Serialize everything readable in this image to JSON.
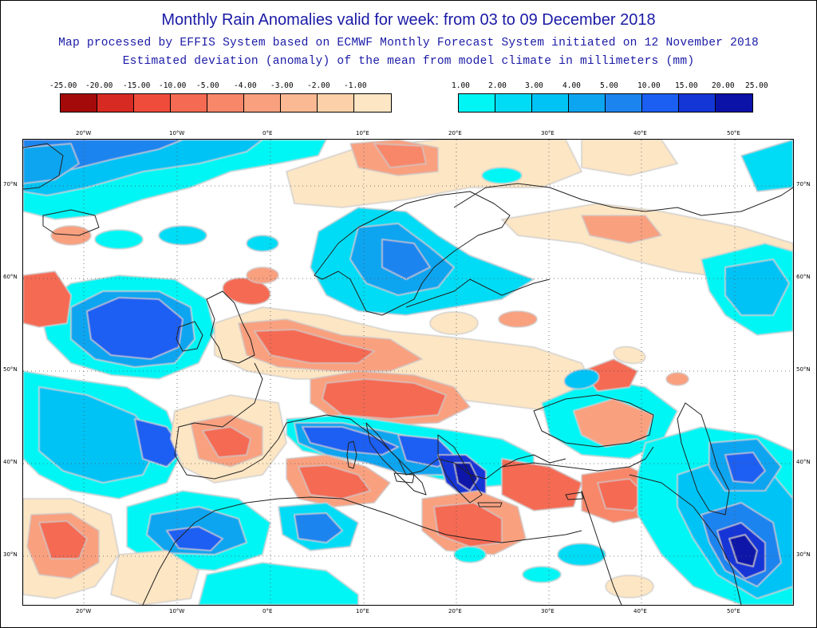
{
  "header": {
    "title": "Monthly Rain Anomalies valid for week: from 03 to 09 December 2018",
    "subtitle1": "Map processed by EFFIS System based on ECMWF Monthly Forecast System initiated on 12 November 2018",
    "subtitle2": "Estimated deviation (anomaly) of the mean from model climate in millimeters (mm)"
  },
  "legend_negative": {
    "labels": [
      "-25.00",
      "-20.00",
      "-15.00",
      "-10.00",
      "-5.00",
      "-4.00",
      "-3.00",
      "-2.00",
      "-1.00"
    ],
    "colors": [
      "#a50a0a",
      "#d72a23",
      "#ef4c3c",
      "#f56a52",
      "#f8876a",
      "#f9a07f",
      "#fbb993",
      "#fcd1a9",
      "#fde6c4"
    ]
  },
  "legend_positive": {
    "labels": [
      "1.00",
      "2.00",
      "3.00",
      "4.00",
      "5.00",
      "10.00",
      "15.00",
      "20.00",
      "25.00"
    ],
    "colors": [
      "#00f5f5",
      "#00dcf5",
      "#00c3f5",
      "#0ea5f0",
      "#1b84ee",
      "#1b5ef2",
      "#1536d6",
      "#0a12a8"
    ]
  },
  "map": {
    "lon_labels": [
      "20°W",
      "10°W",
      "0°E",
      "10°E",
      "20°E",
      "30°E",
      "40°E",
      "50°E"
    ],
    "lat_labels": [
      "70°N",
      "60°N",
      "50°N",
      "40°N",
      "30°N"
    ],
    "colors": {
      "sea_white": "#ffffff",
      "coast": "#2a2a2a",
      "grid": "#444444",
      "contour": "#c9c9c9"
    }
  }
}
